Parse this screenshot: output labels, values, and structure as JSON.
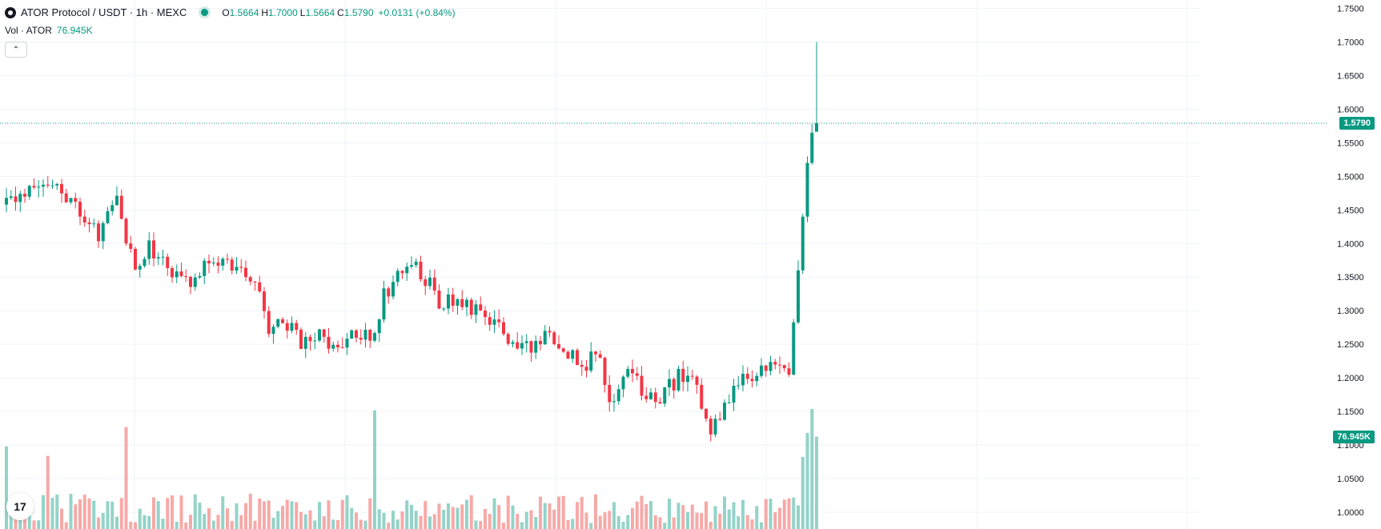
{
  "header": {
    "title": "ATOR Protocol / USDT · 1h · MEXC",
    "open_label": "O",
    "open": "1.5664",
    "high_label": "H",
    "high": "1.7000",
    "low_label": "L",
    "low": "1.5664",
    "close_label": "C",
    "close": "1.5790",
    "change": "+0.0131 (+0.84%)",
    "volume_label": "Vol · ATOR",
    "volume_value": "76.945K"
  },
  "badges": {
    "last_price": "1.5790",
    "last_volume": "76.945K"
  },
  "logo_text": "17",
  "colors": {
    "up": "#089981",
    "down": "#f23645",
    "volume_up": "#94d3c8",
    "volume_down": "#f7a9a7",
    "grid": "#f0f3fa"
  },
  "chart_data": {
    "type": "candlestick",
    "ylim": [
      0.975,
      1.7625
    ],
    "y_ticks": [
      "1.7500",
      "1.7000",
      "1.6500",
      "1.6000",
      "1.5500",
      "1.5000",
      "1.4500",
      "1.4000",
      "1.3500",
      "1.3000",
      "1.2500",
      "1.2000",
      "1.1500",
      "1.1000",
      "1.0500",
      "1.0000"
    ],
    "last_price": 1.579,
    "volume_max": 100,
    "anchors": [
      [
        0,
        1.46
      ],
      [
        8,
        1.5
      ],
      [
        12,
        1.48
      ],
      [
        16,
        1.45
      ],
      [
        20,
        1.41
      ],
      [
        24,
        1.46
      ],
      [
        28,
        1.36
      ],
      [
        31,
        1.4
      ],
      [
        35,
        1.36
      ],
      [
        40,
        1.35
      ],
      [
        45,
        1.38
      ],
      [
        50,
        1.36
      ],
      [
        54,
        1.35
      ],
      [
        57,
        1.27
      ],
      [
        60,
        1.29
      ],
      [
        64,
        1.25
      ],
      [
        68,
        1.27
      ],
      [
        72,
        1.24
      ],
      [
        76,
        1.27
      ],
      [
        79,
        1.26
      ],
      [
        82,
        1.32
      ],
      [
        85,
        1.36
      ],
      [
        88,
        1.37
      ],
      [
        91,
        1.35
      ],
      [
        94,
        1.31
      ],
      [
        98,
        1.31
      ],
      [
        102,
        1.295
      ],
      [
        106,
        1.29
      ],
      [
        110,
        1.24
      ],
      [
        114,
        1.25
      ],
      [
        118,
        1.26
      ],
      [
        121,
        1.25
      ],
      [
        125,
        1.21
      ],
      [
        128,
        1.24
      ],
      [
        131,
        1.17
      ],
      [
        135,
        1.2
      ],
      [
        139,
        1.18
      ],
      [
        142,
        1.17
      ],
      [
        146,
        1.2
      ],
      [
        150,
        1.19
      ],
      [
        153,
        1.12
      ],
      [
        156,
        1.16
      ],
      [
        159,
        1.19
      ],
      [
        162,
        1.2
      ],
      [
        165,
        1.22
      ],
      [
        168,
        1.22
      ],
      [
        170,
        1.2
      ],
      [
        172,
        1.36
      ],
      [
        174,
        1.52
      ],
      [
        175,
        1.565
      ],
      [
        176,
        1.579
      ]
    ],
    "last_candle": {
      "o": 1.5664,
      "h": 1.7,
      "l": 1.5664,
      "c": 1.579
    },
    "last_volumes": [
      60,
      80,
      100,
      76.945
    ]
  }
}
